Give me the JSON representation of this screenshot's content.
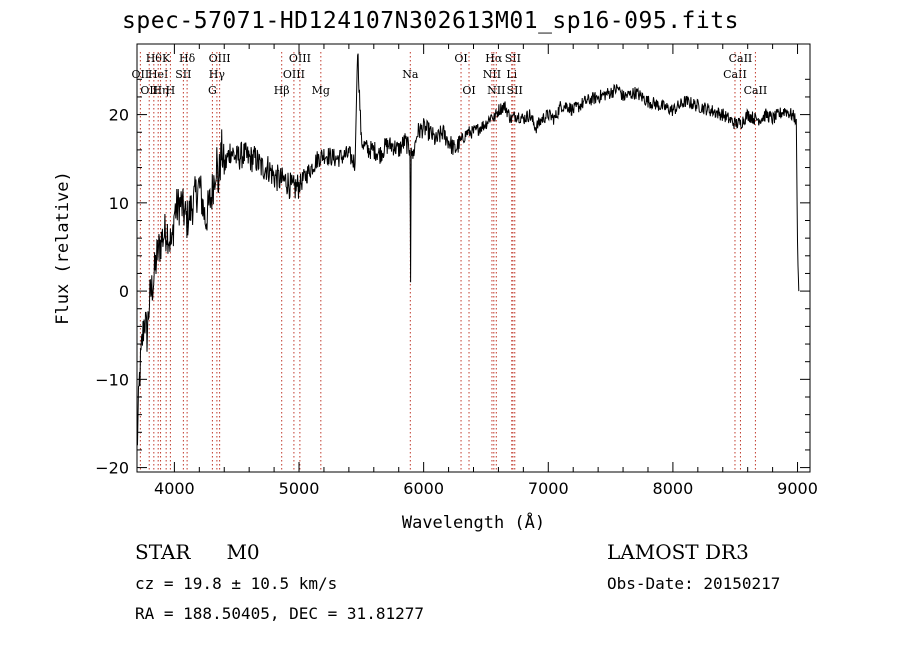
{
  "title": "spec-57071-HD124107N302613M01_sp16-095.fits",
  "info": {
    "class": "STAR",
    "subclass": "M0",
    "cz": "cz = 19.8 ± 10.5 km/s",
    "radec": "RA = 188.50405, DEC =  31.81277",
    "survey": "LAMOST DR3",
    "obsdate": "Obs-Date: 20150217"
  },
  "chart_data": {
    "type": "line",
    "title": "spec-57071-HD124107N302613M01_sp16-095.fits",
    "xlabel": "Wavelength (Å)",
    "ylabel": "Flux (relative)",
    "xlim": [
      3700,
      9100
    ],
    "ylim": [
      -20.5,
      28
    ],
    "xticks": [
      4000,
      5000,
      6000,
      7000,
      8000,
      9000
    ],
    "yticks": [
      -20,
      -10,
      0,
      10,
      20
    ],
    "series": [
      {
        "name": "spectrum",
        "x": [
          3700,
          3720,
          3740,
          3760,
          3780,
          3800,
          3830,
          3860,
          3900,
          3940,
          3980,
          4000,
          4050,
          4100,
          4150,
          4200,
          4250,
          4300,
          4340,
          4350,
          4380,
          4400,
          4450,
          4500,
          4550,
          4600,
          4650,
          4700,
          4750,
          4800,
          4861,
          4900,
          4950,
          5000,
          5050,
          5100,
          5150,
          5200,
          5300,
          5400,
          5450,
          5470,
          5500,
          5550,
          5600,
          5650,
          5700,
          5750,
          5800,
          5850,
          5890,
          5895,
          5900,
          5910,
          5950,
          6000,
          6050,
          6100,
          6150,
          6200,
          6250,
          6300,
          6350,
          6400,
          6450,
          6500,
          6550,
          6563,
          6600,
          6650,
          6700,
          6750,
          6800,
          6850,
          6900,
          6950,
          7000,
          7050,
          7100,
          7150,
          7200,
          7300,
          7400,
          7500,
          7560,
          7600,
          7700,
          7800,
          7900,
          8000,
          8100,
          8200,
          8300,
          8400,
          8498,
          8542,
          8600,
          8662,
          8700,
          8750,
          8800,
          8850,
          8900,
          8950,
          8990,
          9000,
          9010
        ],
        "y": [
          -18,
          -10,
          -6,
          -3,
          -5,
          -1,
          1,
          4,
          6,
          7,
          5,
          9,
          10,
          8,
          10,
          12,
          8,
          11,
          15,
          12,
          16,
          14,
          16,
          15,
          15.5,
          15,
          15,
          14,
          14,
          13,
          12.5,
          12.5,
          11.5,
          12,
          13,
          14,
          15,
          15.5,
          15,
          15.5,
          14.5,
          27.5,
          17,
          16,
          16,
          15.5,
          16.5,
          16.5,
          16,
          17,
          16,
          1,
          17,
          15,
          18,
          18.5,
          18,
          17,
          18,
          17,
          16,
          17,
          18,
          18,
          18.5,
          19,
          20,
          19.5,
          20.5,
          21,
          19.5,
          20,
          19.5,
          20,
          18.5,
          19.5,
          20,
          19.5,
          21,
          21,
          20.5,
          21.5,
          22,
          22.5,
          23,
          22,
          22.5,
          21.5,
          21,
          20.5,
          21.5,
          21,
          20.5,
          20,
          19,
          19,
          20,
          19.5,
          19.5,
          20,
          19.5,
          20,
          20.5,
          20,
          19.5,
          5,
          0
        ]
      }
    ],
    "lines": [
      {
        "w": 3727,
        "label": "OII",
        "row": 1
      },
      {
        "w": 3798,
        "label": "OII",
        "row": 2
      },
      {
        "w": 3835,
        "label": "Hθ",
        "row": 0
      },
      {
        "w": 3870,
        "label": "HeI",
        "row": 1
      },
      {
        "w": 3889,
        "label": "Hη",
        "row": 2
      },
      {
        "w": 3934,
        "label": "K",
        "row": 0
      },
      {
        "w": 3968,
        "label": "H",
        "row": 2
      },
      {
        "w": 4072,
        "label": "SII",
        "row": 1
      },
      {
        "w": 4102,
        "label": "Hδ",
        "row": 0
      },
      {
        "w": 4305,
        "label": "G",
        "row": 2
      },
      {
        "w": 4341,
        "label": "Hγ",
        "row": 1
      },
      {
        "w": 4363,
        "label": "OIII",
        "row": 0
      },
      {
        "w": 4861,
        "label": "Hβ",
        "row": 2
      },
      {
        "w": 4959,
        "label": "OIII",
        "row": 1
      },
      {
        "w": 5007,
        "label": "OIII",
        "row": 0
      },
      {
        "w": 5175,
        "label": "Mg",
        "row": 2
      },
      {
        "w": 5893,
        "label": "Na",
        "row": 1
      },
      {
        "w": 6300,
        "label": "OI",
        "row": 0
      },
      {
        "w": 6364,
        "label": "OI",
        "row": 2
      },
      {
        "w": 6548,
        "label": "NII",
        "row": 1
      },
      {
        "w": 6563,
        "label": "Hα",
        "row": 0
      },
      {
        "w": 6583,
        "label": "NII",
        "row": 2
      },
      {
        "w": 6707,
        "label": "Li",
        "row": 1
      },
      {
        "w": 6716,
        "label": "SII",
        "row": 0
      },
      {
        "w": 6731,
        "label": "SII",
        "row": 2
      },
      {
        "w": 8498,
        "label": "CaII",
        "row": 1
      },
      {
        "w": 8542,
        "label": "CaII",
        "row": 0
      },
      {
        "w": 8662,
        "label": "CaII",
        "row": 2
      }
    ]
  }
}
